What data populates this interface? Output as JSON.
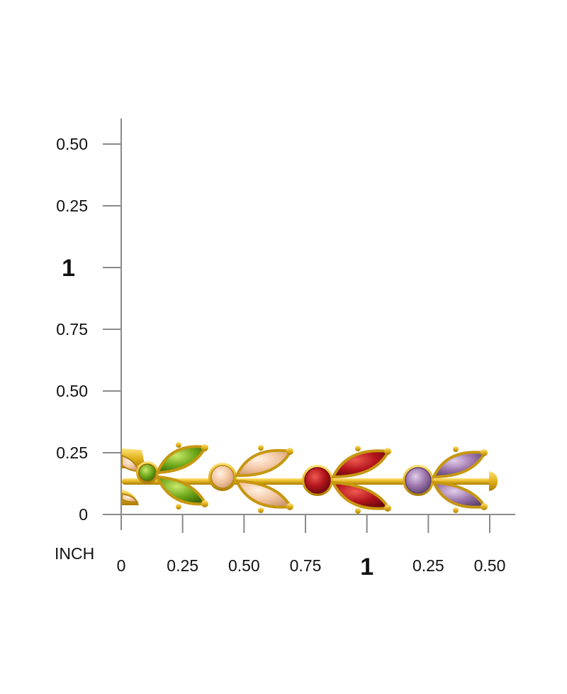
{
  "unit_label": "INCH",
  "ruler": {
    "vertical_ticks": [
      {
        "label": "0",
        "major": false
      },
      {
        "label": "0.25",
        "major": false
      },
      {
        "label": "0.50",
        "major": false
      },
      {
        "label": "0.75",
        "major": false
      },
      {
        "label": "1",
        "major": true
      },
      {
        "label": "0.25",
        "major": false
      },
      {
        "label": "0.50",
        "major": false
      }
    ],
    "horizontal_ticks": [
      {
        "label": "0",
        "major": false
      },
      {
        "label": "0.25",
        "major": false
      },
      {
        "label": "0.50",
        "major": false
      },
      {
        "label": "0.75",
        "major": false
      },
      {
        "label": "1",
        "major": true
      },
      {
        "label": "0.25",
        "major": false
      },
      {
        "label": "0.50",
        "major": false
      }
    ]
  },
  "colors": {
    "axis": "#8a8a8a",
    "gold": "#e2b21c",
    "gold_dark": "#b5860a",
    "peridot": "#6fa81a",
    "morganite": "#f2c6a2",
    "garnet": "#b3141c",
    "amethyst": "#9b74ab"
  },
  "bracelet": {
    "stone_sequence": [
      "morganite",
      "peridot",
      "morganite",
      "garnet",
      "amethyst"
    ]
  }
}
